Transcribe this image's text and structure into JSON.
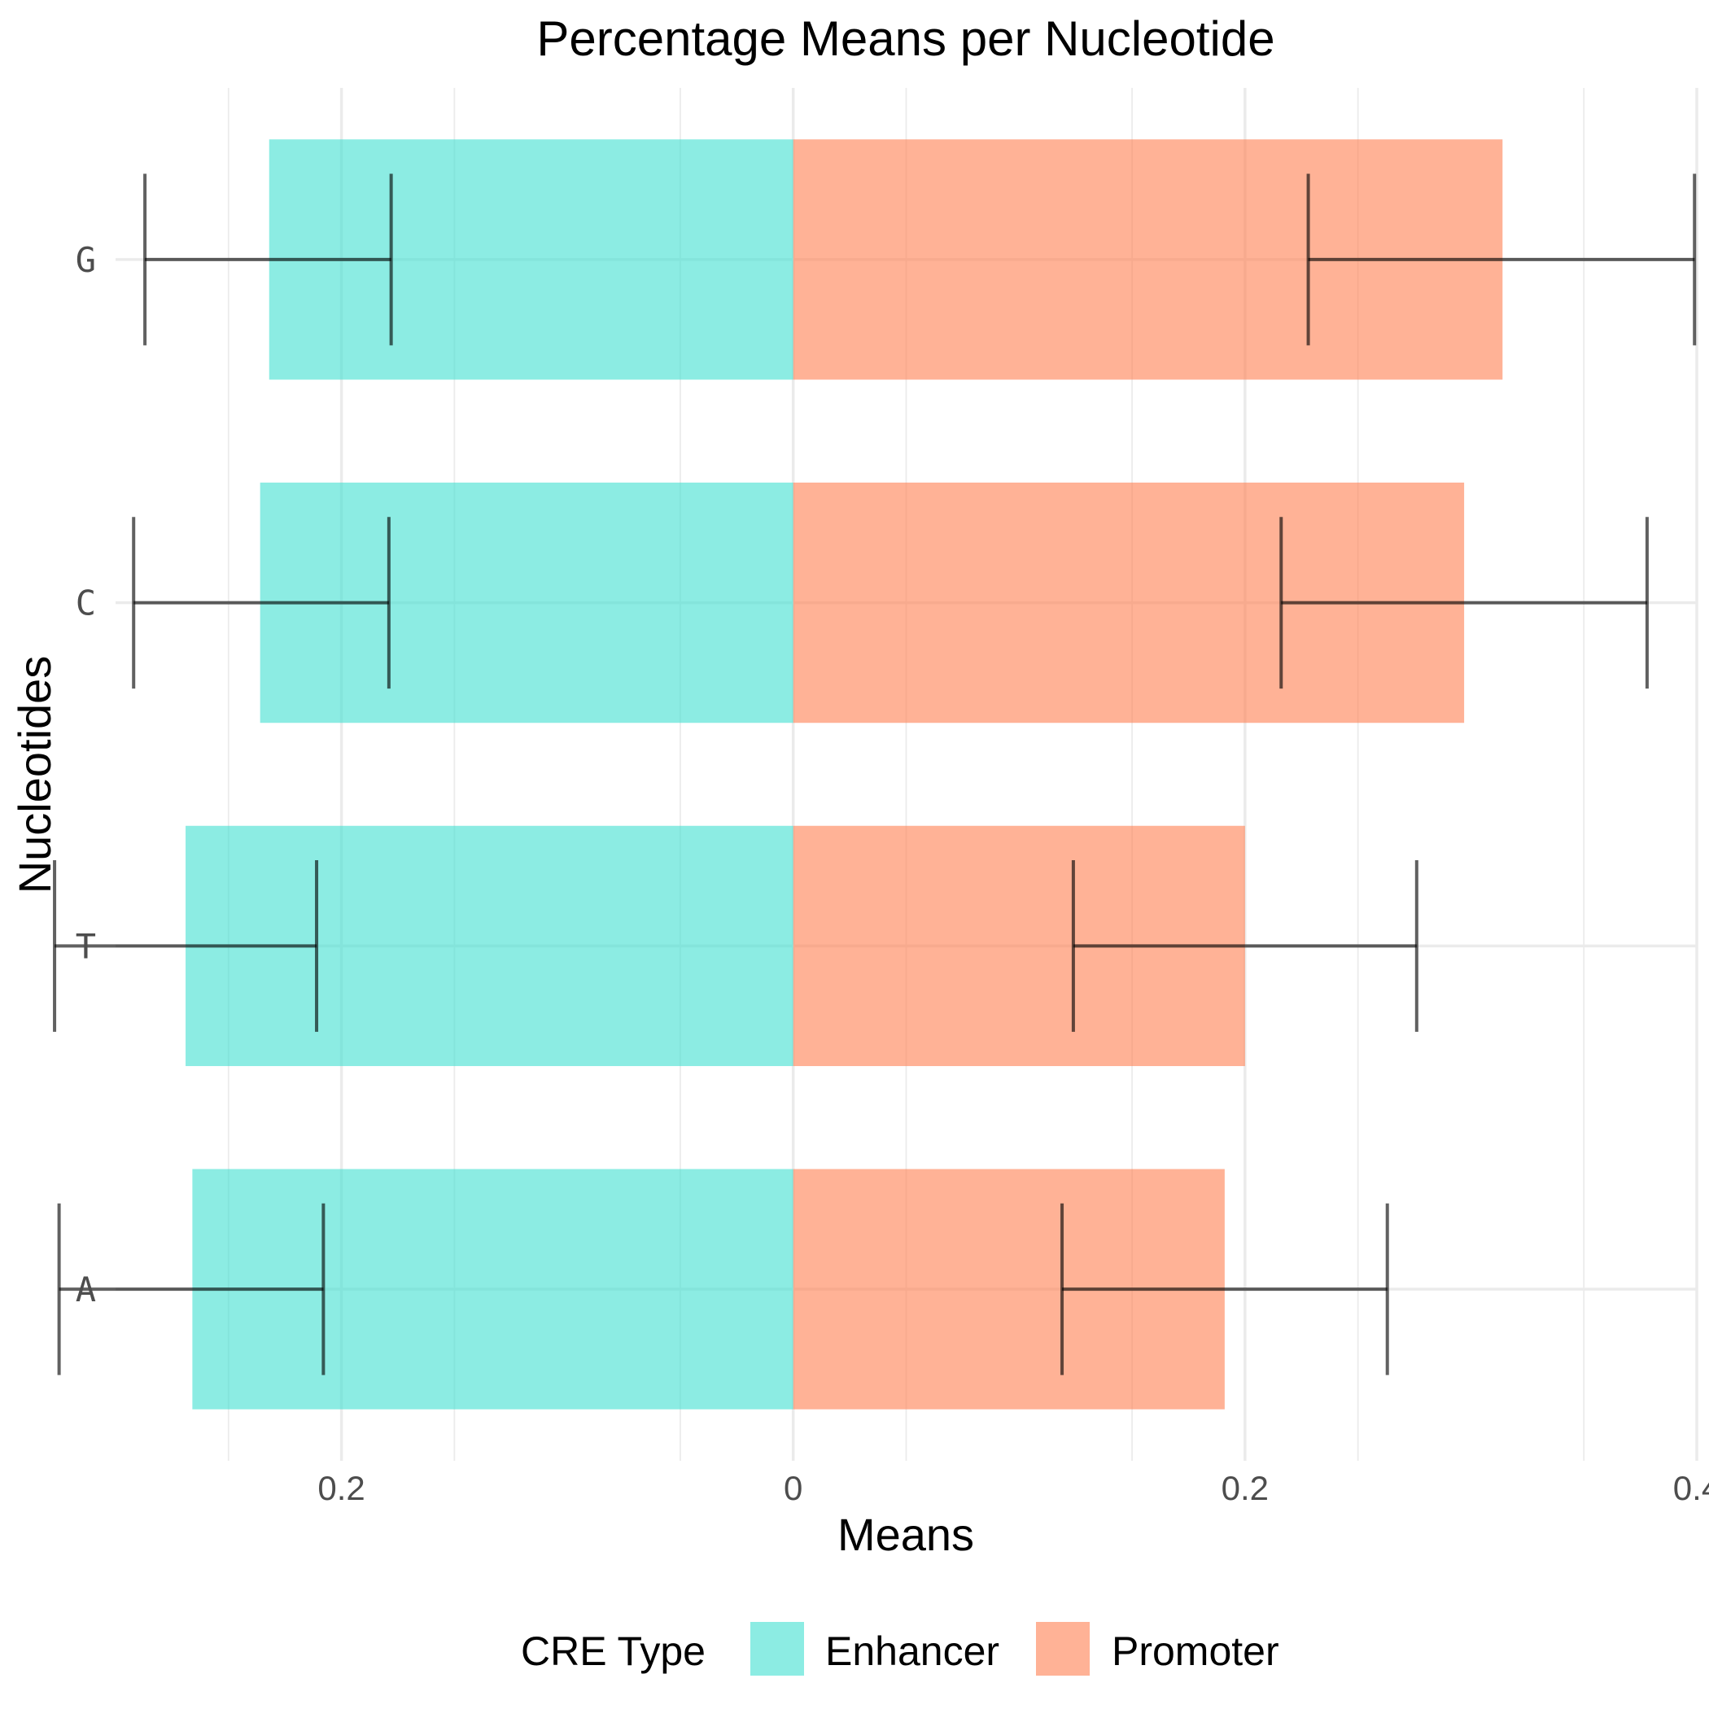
{
  "chart_data": {
    "type": "bar",
    "orientation": "horizontal-diverging",
    "title": "Percentage Means per Nucleotide",
    "xlabel": "Means",
    "ylabel": "Nucleotides",
    "categories": [
      "A",
      "T",
      "C",
      "G"
    ],
    "xlim": [
      -0.3,
      0.4
    ],
    "x_ticks": [
      -0.2,
      0,
      0.2,
      0.4
    ],
    "x_tick_labels": [
      "0.2",
      "0",
      "0.2",
      "0.4"
    ],
    "grid": true,
    "legend": {
      "title": "CRE Type",
      "position": "bottom"
    },
    "series": [
      {
        "name": "Enhancer",
        "color": "#40E0D0",
        "values": [
          -0.266,
          -0.269,
          -0.236,
          -0.232
        ],
        "error_low": [
          -0.325,
          -0.327,
          -0.292,
          -0.287
        ],
        "error_high": [
          -0.208,
          -0.211,
          -0.179,
          -0.178
        ]
      },
      {
        "name": "Promoter",
        "color": "#FF7F50",
        "values": [
          0.191,
          0.2,
          0.297,
          0.314
        ],
        "error_low": [
          0.119,
          0.124,
          0.216,
          0.228
        ],
        "error_high": [
          0.263,
          0.276,
          0.378,
          0.399
        ]
      }
    ]
  }
}
